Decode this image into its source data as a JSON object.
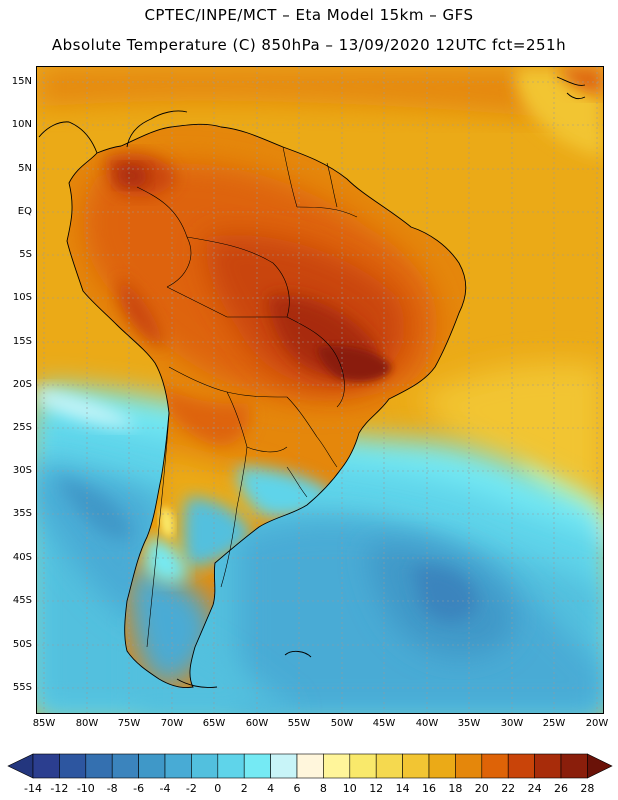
{
  "header": {
    "line1": "CPTEC/INPE/MCT –   Eta Model 15km – GFS",
    "line2": "Absolute Temperature (C) 850hPa – 13/09/2020 12UTC fct=251h"
  },
  "map": {
    "lat_labels": [
      "15N",
      "10N",
      "5N",
      "EQ",
      "5S",
      "10S",
      "15S",
      "20S",
      "25S",
      "30S",
      "35S",
      "40S",
      "45S",
      "50S",
      "55S"
    ],
    "lon_labels": [
      "85W",
      "80W",
      "75W",
      "70W",
      "65W",
      "60W",
      "55W",
      "50W",
      "45W",
      "40W",
      "35W",
      "30W",
      "25W",
      "20W"
    ]
  },
  "colorbar": {
    "labels": [
      "-14",
      "-12",
      "-10",
      "-8",
      "-6",
      "-4",
      "-2",
      "0",
      "2",
      "4",
      "6",
      "8",
      "10",
      "12",
      "14",
      "16",
      "18",
      "20",
      "22",
      "24",
      "26",
      "28"
    ],
    "colors": [
      "#2b3e8f",
      "#2d56a0",
      "#3470b0",
      "#3b84bd",
      "#3f98c8",
      "#48abd5",
      "#52c0de",
      "#5fd4ea",
      "#75eaf4",
      "#c8f4f8",
      "#fff6dc",
      "#fff59a",
      "#f9e96b",
      "#f5d94f",
      "#f2c533",
      "#ebaa17",
      "#e5870b",
      "#de6307",
      "#c94409",
      "#a82c0a",
      "#8a1e0b"
    ],
    "under_color": "#23367e",
    "over_color": "#6a1208"
  }
}
